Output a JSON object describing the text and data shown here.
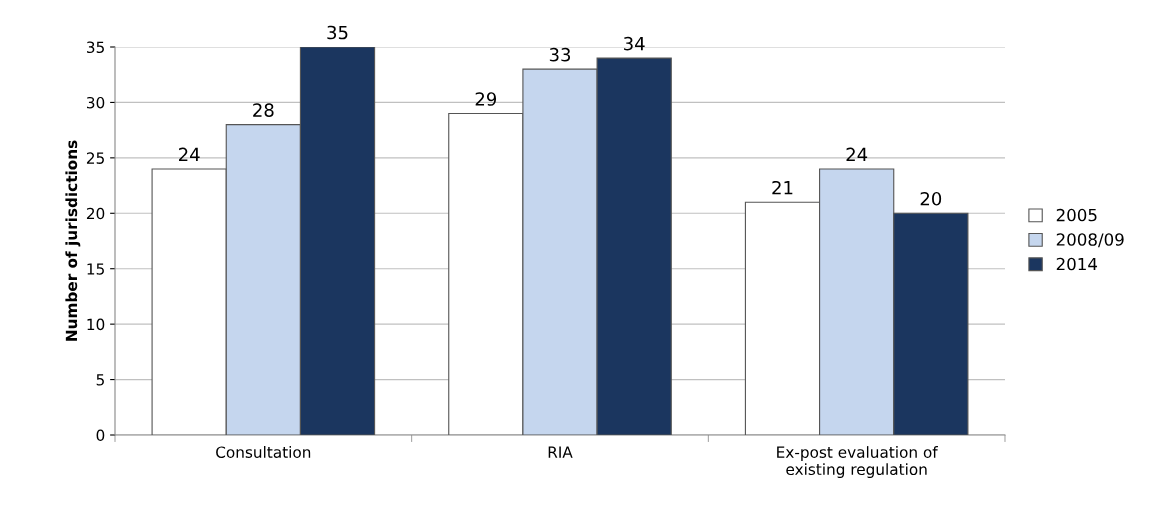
{
  "chart_data": {
    "type": "bar",
    "ylabel": "Number of jurisdictions",
    "categories": [
      "Consultation",
      "RIA",
      "Ex-post evaluation of\nexisting regulation"
    ],
    "series": [
      {
        "name": "2005",
        "color": "#ffffff",
        "values": [
          24,
          29,
          21
        ]
      },
      {
        "name": "2008/09",
        "color": "#c5d6ee",
        "values": [
          28,
          33,
          24
        ]
      },
      {
        "name": "2014",
        "color": "#1b365f",
        "values": [
          35,
          34,
          20
        ]
      }
    ],
    "ylim": [
      0,
      35
    ],
    "yticks": [
      0,
      5,
      10,
      15,
      20,
      25,
      30,
      35
    ],
    "grid": "y",
    "legend": "right",
    "data_labels": true
  }
}
